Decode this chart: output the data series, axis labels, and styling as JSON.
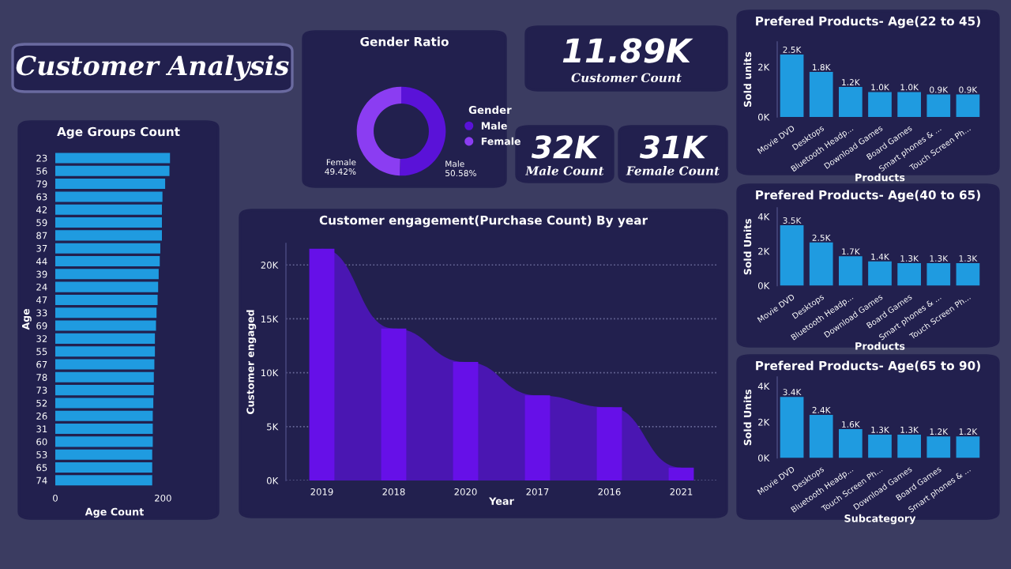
{
  "chart_data": [
    {
      "type": "other",
      "title": "Customer Analysis"
    },
    {
      "type": "bar",
      "orientation": "horizontal",
      "title": "Age Groups Count",
      "xlabel": "Age Count",
      "ylabel": "Age",
      "color": "#1f9be0",
      "categories": [
        "23",
        "56",
        "79",
        "63",
        "42",
        "59",
        "87",
        "37",
        "44",
        "39",
        "24",
        "47",
        "33",
        "69",
        "32",
        "55",
        "67",
        "78",
        "73",
        "52",
        "26",
        "31",
        "60",
        "53",
        "65",
        "74"
      ],
      "values": [
        213,
        212,
        204,
        199,
        198,
        198,
        198,
        195,
        194,
        192,
        191,
        190,
        188,
        187,
        185,
        185,
        184,
        183,
        183,
        182,
        181,
        181,
        181,
        180,
        180,
        180
      ],
      "xlim": [
        0,
        220
      ],
      "xticks": [
        0,
        200
      ]
    },
    {
      "type": "donut",
      "title": "Gender Ratio",
      "categories": [
        "Male",
        "Female"
      ],
      "values": [
        50.58,
        49.42
      ],
      "value_labels": [
        "50.58%",
        "49.42%"
      ],
      "colors": [
        "#5a12d8",
        "#8b3df2"
      ],
      "legend": "right",
      "legend_title": "Gender"
    },
    {
      "type": "other",
      "title": "11.89K",
      "subtitle": "Customer Count"
    },
    {
      "type": "other",
      "title": "32K",
      "subtitle": "Male Count"
    },
    {
      "type": "other",
      "title": "31K",
      "subtitle": "Female Count"
    },
    {
      "type": "bar",
      "title": "Customer engagement(Purchase Count) By year",
      "xlabel": "Year",
      "ylabel": "Customer engaged",
      "grid": "y",
      "categories": [
        "2019",
        "2018",
        "2020",
        "2017",
        "2016",
        "2021"
      ],
      "series": [
        {
          "type": "bar",
          "color": "#6610e8",
          "values": [
            21500,
            14100,
            11000,
            7900,
            6800,
            1200
          ]
        },
        {
          "type": "area",
          "color": "#4a16b2",
          "values": [
            21500,
            14100,
            11000,
            7900,
            6800,
            1200
          ]
        }
      ],
      "ylim": [
        0,
        22000
      ],
      "yticks": [
        {
          "value": 0,
          "label": "0K"
        },
        {
          "value": 5000,
          "label": "5K"
        },
        {
          "value": 10000,
          "label": "10K"
        },
        {
          "value": 15000,
          "label": "15K"
        },
        {
          "value": 20000,
          "label": "20K"
        }
      ]
    },
    {
      "type": "bar",
      "title": "Prefered Products- Age(22 to 45)",
      "xlabel": "Products",
      "ylabel": "Sold units",
      "color": "#1f9be0",
      "categories": [
        "Movie DVD",
        "Desktops",
        "Bluetooth Headp...",
        "Download Games",
        "Board Games",
        "Smart phones & ...",
        "Touch Screen Ph..."
      ],
      "values": [
        2500,
        1800,
        1200,
        1000,
        1000,
        900,
        900
      ],
      "value_labels": [
        "2.5K",
        "1.8K",
        "1.2K",
        "1.0K",
        "1.0K",
        "0.9K",
        "0.9K"
      ],
      "ylim": [
        0,
        3000
      ],
      "yticks": [
        {
          "value": 0,
          "label": "0K"
        },
        {
          "value": 2000,
          "label": "2K"
        }
      ]
    },
    {
      "type": "bar",
      "title": "Prefered Products- Age(40 to 65)",
      "xlabel": "Products",
      "ylabel": "Sold Units",
      "color": "#1f9be0",
      "categories": [
        "Movie DVD",
        "Desktops",
        "Bluetooth Headp...",
        "Download Games",
        "Board Games",
        "Smart phones & ...",
        "Touch Screen Ph..."
      ],
      "values": [
        3500,
        2500,
        1700,
        1400,
        1300,
        1300,
        1300
      ],
      "value_labels": [
        "3.5K",
        "2.5K",
        "1.7K",
        "1.4K",
        "1.3K",
        "1.3K",
        "1.3K"
      ],
      "ylim": [
        0,
        4500
      ],
      "yticks": [
        {
          "value": 0,
          "label": "0K"
        },
        {
          "value": 2000,
          "label": "2K"
        },
        {
          "value": 4000,
          "label": "4K"
        }
      ]
    },
    {
      "type": "bar",
      "title": "Prefered Products- Age(65 to 90)",
      "xlabel": "Subcategory",
      "ylabel": "Sold Units",
      "color": "#1f9be0",
      "categories": [
        "Movie DVD",
        "Desktops",
        "Bluetooth Headp...",
        "Touch Screen Ph...",
        "Download Games",
        "Board Games",
        "Smart phones & ..."
      ],
      "values": [
        3400,
        2400,
        1600,
        1300,
        1300,
        1200,
        1200
      ],
      "value_labels": [
        "3.4K",
        "2.4K",
        "1.6K",
        "1.3K",
        "1.3K",
        "1.2K",
        "1.2K"
      ],
      "ylim": [
        0,
        4500
      ],
      "yticks": [
        {
          "value": 0,
          "label": "0K"
        },
        {
          "value": 2000,
          "label": "2K"
        },
        {
          "value": 4000,
          "label": "4K"
        }
      ]
    }
  ]
}
